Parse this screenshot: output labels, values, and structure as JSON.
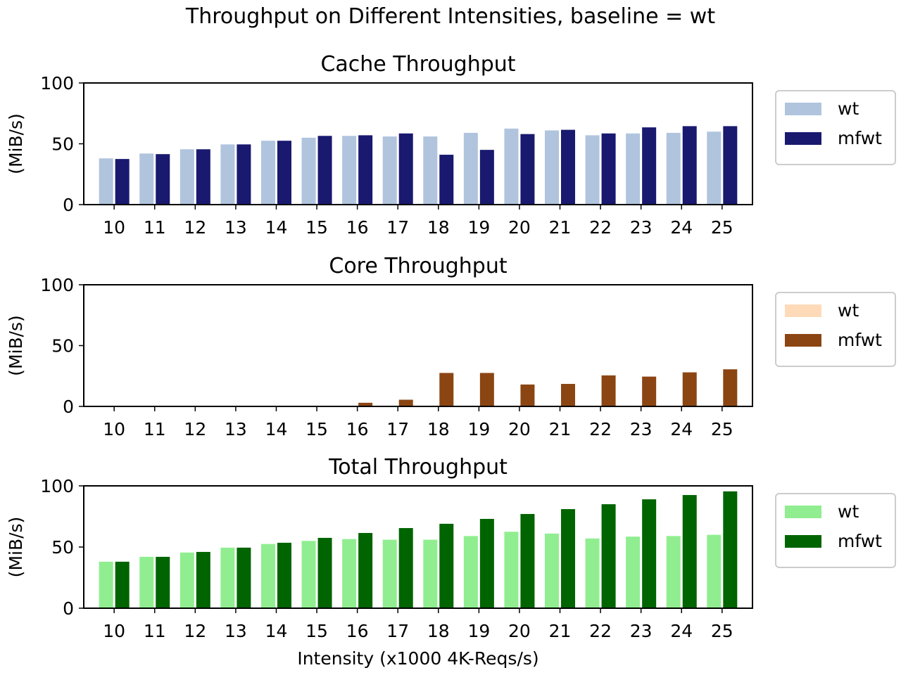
{
  "figure": {
    "suptitle": "Throughput on Different Intensities, baseline = wt",
    "xlabel": "Intensity (x1000 4K-Reqs/s)"
  },
  "chart_data": [
    {
      "type": "bar",
      "title": "Cache Throughput",
      "xlabel": "",
      "ylabel": "(MiB/s)",
      "ylim": [
        0,
        100
      ],
      "yticks": [
        0,
        50,
        100
      ],
      "categories": [
        "10",
        "11",
        "12",
        "13",
        "14",
        "15",
        "16",
        "17",
        "18",
        "19",
        "20",
        "21",
        "22",
        "23",
        "24",
        "25"
      ],
      "legend_position": "outside right",
      "series": [
        {
          "name": "wt",
          "color": "#b0c4de",
          "values": [
            38,
            42,
            45.5,
            49.5,
            52.5,
            55,
            56.5,
            56,
            56,
            59,
            62.5,
            61,
            57,
            58.5,
            59,
            60
          ]
        },
        {
          "name": "mfwt",
          "color": "#191970",
          "values": [
            37.5,
            41.5,
            45.5,
            49.5,
            52.5,
            56.5,
            57,
            58.5,
            41,
            45,
            58,
            61.5,
            58.5,
            63.5,
            64.5,
            64.5
          ]
        }
      ]
    },
    {
      "type": "bar",
      "title": "Core Throughput",
      "xlabel": "",
      "ylabel": "(MiB/s)",
      "ylim": [
        0,
        100
      ],
      "yticks": [
        0,
        50,
        100
      ],
      "categories": [
        "10",
        "11",
        "12",
        "13",
        "14",
        "15",
        "16",
        "17",
        "18",
        "19",
        "20",
        "21",
        "22",
        "23",
        "24",
        "25"
      ],
      "legend_position": "outside right",
      "series": [
        {
          "name": "wt",
          "color": "#ffdab9",
          "values": [
            0,
            0,
            0,
            0,
            0,
            0,
            0,
            0,
            0,
            0,
            0,
            0,
            0,
            0,
            0,
            0
          ]
        },
        {
          "name": "mfwt",
          "color": "#8b4513",
          "values": [
            0,
            0,
            0,
            0,
            0,
            0,
            3,
            5.5,
            27.5,
            27.5,
            18,
            18.5,
            25.5,
            24.5,
            28,
            30.5
          ]
        }
      ]
    },
    {
      "type": "bar",
      "title": "Total Throughput",
      "xlabel": "Intensity (x1000 4K-Reqs/s)",
      "ylabel": "(MiB/s)",
      "ylim": [
        0,
        100
      ],
      "yticks": [
        0,
        50,
        100
      ],
      "categories": [
        "10",
        "11",
        "12",
        "13",
        "14",
        "15",
        "16",
        "17",
        "18",
        "19",
        "20",
        "21",
        "22",
        "23",
        "24",
        "25"
      ],
      "legend_position": "outside right",
      "series": [
        {
          "name": "wt",
          "color": "#90ee90",
          "values": [
            38,
            42,
            45.5,
            49.5,
            52.5,
            55,
            56.5,
            56,
            56,
            59,
            62.5,
            61,
            57,
            58.5,
            59,
            60
          ]
        },
        {
          "name": "mfwt",
          "color": "#006400",
          "values": [
            38,
            42,
            46,
            49.5,
            53.5,
            57.5,
            61.5,
            65.5,
            69,
            73,
            77,
            81,
            85,
            89,
            92.5,
            95.5
          ]
        }
      ]
    }
  ]
}
